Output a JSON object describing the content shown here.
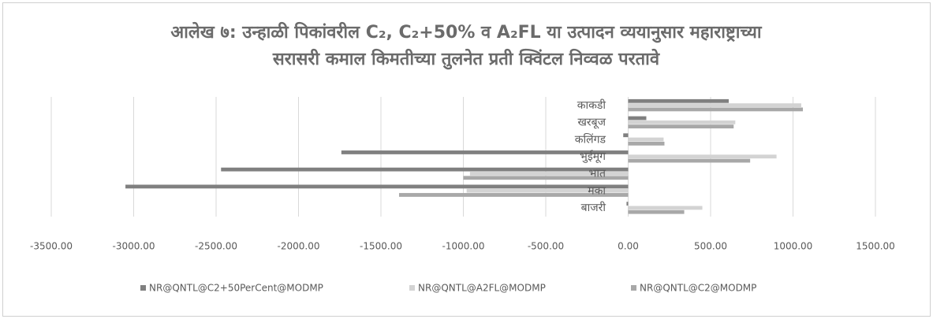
{
  "chart_data": {
    "type": "bar",
    "orientation": "horizontal",
    "title": [
      "आलेख ७: उन्हाळी पिकांवरील C₂, C₂+50% व A₂FL या उत्पादन व्ययानुसार महाराष्ट्राच्या",
      "सरासरी कमाल किमतीच्या तुलनेत प्रती क्विंटल निव्वळ परतावे"
    ],
    "categories": [
      "बाजरी",
      "मका",
      "भात",
      "भुईमूग",
      "कलिंगड",
      "खरबूज",
      "काकडी"
    ],
    "series": [
      {
        "name": "NR@QNTL@C2+50PerCent@MODMP",
        "color": "#808080",
        "values": [
          -10,
          -3050,
          -2470,
          -1740,
          -30,
          110,
          610
        ]
      },
      {
        "name": "NR@QNTL@A2FL@MODMP",
        "color": "#d3d3d3",
        "values": [
          450,
          -980,
          -960,
          900,
          215,
          650,
          1050
        ]
      },
      {
        "name": "NR@QNTL@C2@MODMP",
        "color": "#a8a8a8",
        "values": [
          340,
          -1390,
          -1000,
          740,
          220,
          640,
          1060
        ]
      }
    ],
    "xlim": [
      -3500,
      1500
    ],
    "xticks": [
      {
        "value": -3500,
        "label": "-3500.00"
      },
      {
        "value": -3000,
        "label": "-3000.00"
      },
      {
        "value": -2500,
        "label": "-2500.00"
      },
      {
        "value": -2000,
        "label": "-2000.00"
      },
      {
        "value": -1500,
        "label": "-1500.00"
      },
      {
        "value": -1000,
        "label": "-1000.00"
      },
      {
        "value": -500,
        "label": "-500.00"
      },
      {
        "value": 0,
        "label": "0.00"
      },
      {
        "value": 500,
        "label": "500.00"
      },
      {
        "value": 1000,
        "label": "1000.00"
      },
      {
        "value": 1500,
        "label": "1500.00"
      }
    ],
    "grid": true,
    "legend": "bottom"
  }
}
